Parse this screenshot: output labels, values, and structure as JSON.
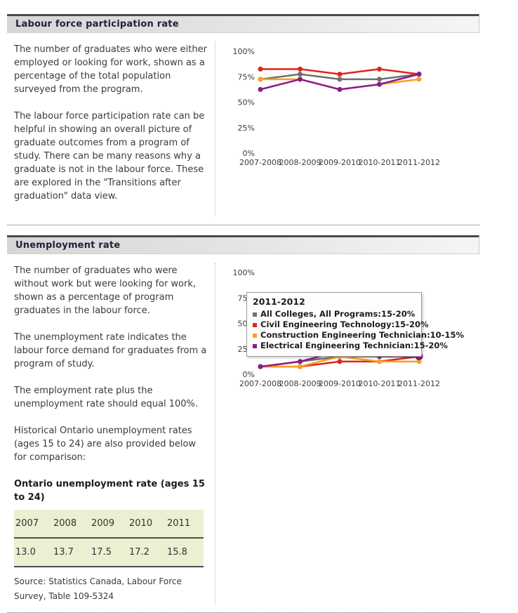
{
  "sections": [
    {
      "title": "Labour force participation rate",
      "paragraphs": [
        "The number of graduates who were either employed or looking for work, shown as a percentage of the total population surveyed from the program.",
        "The labour force participation rate can be helpful in showing an overall picture of graduate outcomes from a program of study. There can be many reasons why a graduate is not in the labour force. These are explored in the \"Transitions after graduation\" data view."
      ]
    },
    {
      "title": "Unemployment rate",
      "paragraphs": [
        "The number of graduates who were without work but were looking for work, shown as a percentage of program graduates in the labour force.",
        "The unemployment rate indicates the labour force demand for graduates from a program of study.",
        "The employment rate plus the unemployment rate should equal 100%.",
        "Historical Ontario unemployment rates (ages 15 to 24) are also provided below for comparison:"
      ],
      "tooltip": {
        "title": "2011-2012",
        "rows": [
          {
            "label": "All Colleges, All Programs:15-20%",
            "color": "#6f6f6f"
          },
          {
            "label": "Civil Engineering Technology:15-20%",
            "color": "#e2231b"
          },
          {
            "label": "Construction Engineering Technician:10-15%",
            "color": "#f9a11c"
          },
          {
            "label": "Electrical Engineering Technician:15-20%",
            "color": "#8d1b8d"
          }
        ]
      },
      "table": {
        "title": "Ontario unemployment rate (ages 15 to 24)",
        "years": [
          "2007",
          "2008",
          "2009",
          "2010",
          "2011"
        ],
        "values": [
          "13.0",
          "13.7",
          "17.5",
          "17.2",
          "15.8"
        ],
        "source": "Source: Statistics Canada, Labour Force Survey, Table 109-5324"
      }
    }
  ],
  "chart_data": [
    {
      "type": "line",
      "title": "Labour force participation rate",
      "categories": [
        "2007-2008",
        "2008-2009",
        "2009-2010",
        "2010-2011",
        "2011-2012"
      ],
      "yticks": [
        0,
        25,
        50,
        75,
        100
      ],
      "ytick_labels": [
        "0%",
        "25%",
        "50%",
        "75%",
        "100%"
      ],
      "ylim": [
        0,
        100
      ],
      "grid": false,
      "legend": "none",
      "series": [
        {
          "name": "All Colleges, All Programs",
          "color": "#6f6f6f",
          "values": [
            72.5,
            77.5,
            72.5,
            72.5,
            77.5
          ]
        },
        {
          "name": "Civil Engineering Technology",
          "color": "#e2231b",
          "values": [
            82.5,
            82.5,
            77.5,
            82.5,
            77.5
          ]
        },
        {
          "name": "Construction Engineering Technician",
          "color": "#f9a11c",
          "values": [
            72.5,
            72.5,
            62.5,
            67.5,
            72.5
          ]
        },
        {
          "name": "Electrical Engineering Technician",
          "color": "#8d1b8d",
          "values": [
            62.5,
            72.5,
            62.5,
            67.5,
            77.5
          ]
        }
      ]
    },
    {
      "type": "line",
      "title": "Unemployment rate",
      "categories": [
        "2007-2008",
        "2008-2009",
        "2009-2010",
        "2010-2011",
        "2011-2012"
      ],
      "yticks": [
        0,
        25,
        50,
        75,
        100
      ],
      "ytick_labels": [
        "0%",
        "25%",
        "50%",
        "75%",
        "100%"
      ],
      "ylim": [
        0,
        100
      ],
      "grid": false,
      "legend": "tooltip-box",
      "highlight": {
        "series_index": 3,
        "point_index": 4
      },
      "series": [
        {
          "name": "All Colleges, All Programs",
          "color": "#6f6f6f",
          "values": [
            7.5,
            12.5,
            17.5,
            17.5,
            17.5
          ]
        },
        {
          "name": "Civil Engineering Technology",
          "color": "#e2231b",
          "values": [
            7.5,
            7.5,
            12.5,
            12.5,
            17.5
          ]
        },
        {
          "name": "Construction Engineering Technician",
          "color": "#f9a11c",
          "values": [
            7.5,
            7.5,
            17.5,
            12.5,
            12.5
          ]
        },
        {
          "name": "Electrical Engineering Technician",
          "color": "#8d1b8d",
          "values": [
            7.5,
            12.5,
            22.5,
            17.5,
            17.5
          ]
        }
      ]
    }
  ]
}
